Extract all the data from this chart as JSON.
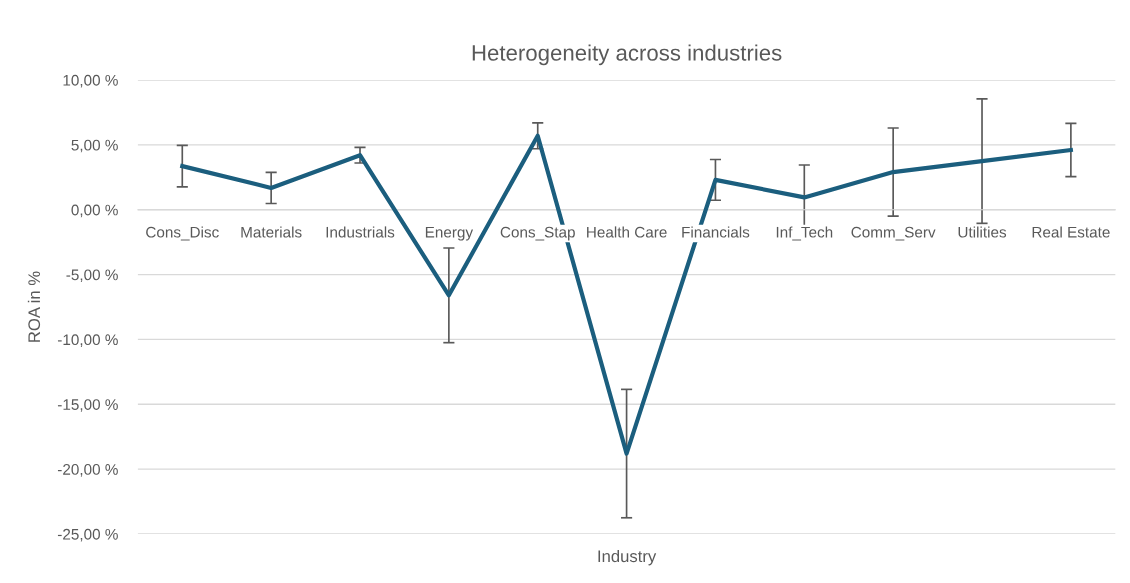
{
  "chart_data": {
    "type": "line",
    "title": "Heterogeneity across industries",
    "xlabel": "Industry",
    "ylabel": "ROA in %",
    "categories": [
      "Cons_Disc",
      "Materials",
      "Industrials",
      "Energy",
      "Cons_Stap",
      "Health Care",
      "Financials",
      "Inf_Tech",
      "Comm_Serv",
      "Utilities",
      "Real Estate"
    ],
    "series": [
      {
        "color": "#1b5e7e",
        "values": [
          3.36,
          1.68,
          4.2,
          -6.6,
          5.7,
          -18.8,
          2.3,
          0.95,
          2.9,
          3.75,
          4.6
        ],
        "errors": [
          1.6,
          1.2,
          0.6,
          3.65,
          1.0,
          4.95,
          1.57,
          2.5,
          3.4,
          4.8,
          2.05
        ]
      }
    ],
    "ylim": [
      -25,
      10
    ],
    "yticks": [
      {
        "value": 10,
        "label": "10,00 %"
      },
      {
        "value": 5,
        "label": "5,00 %"
      },
      {
        "value": 0,
        "label": "0,00 %"
      },
      {
        "value": -5,
        "label": "-5,00 %"
      },
      {
        "value": -10,
        "label": "-10,00 %"
      },
      {
        "value": -15,
        "label": "-15,00 %"
      },
      {
        "value": -20,
        "label": "-20,00 %"
      },
      {
        "value": -25,
        "label": "-25,00 %"
      }
    ],
    "grid": "y",
    "legend": false,
    "marker": "none",
    "line_style": "solid"
  }
}
